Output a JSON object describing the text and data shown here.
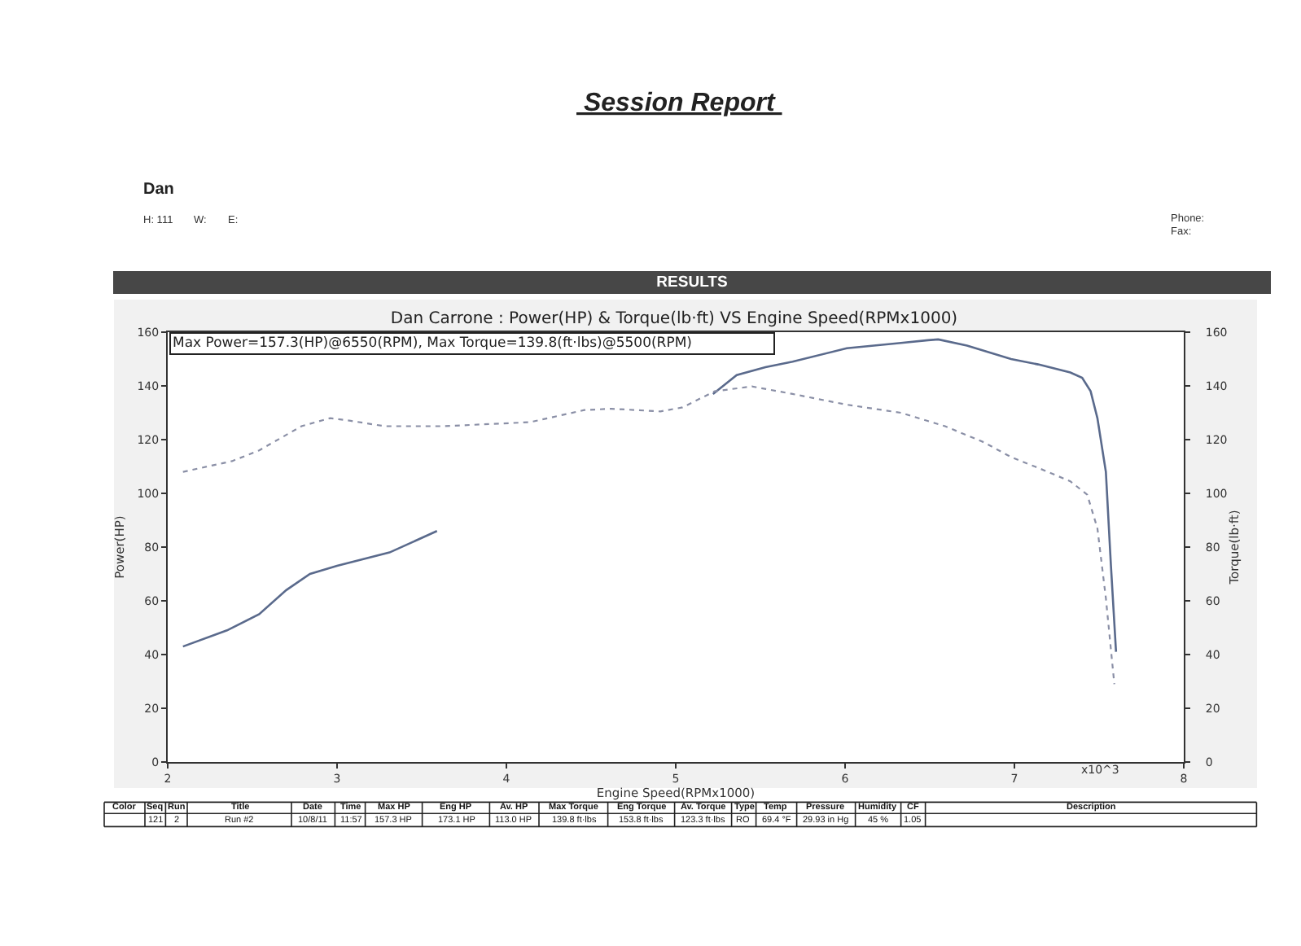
{
  "chart_data": {
    "type": "line",
    "title": "Dan Carrone : Power(HP) & Torque(lb·ft) VS Engine Speed(RPMx1000)",
    "xlabel": "Engine Speed(RPMx1000)",
    "ylabel": "Power(HP)",
    "y2label": "Torque(lb·ft)",
    "xlim": [
      2,
      8
    ],
    "xticks": [
      2,
      3,
      4,
      5,
      6,
      7,
      8
    ],
    "ylim": [
      0,
      160
    ],
    "yticks": [
      0,
      20,
      40,
      60,
      80,
      100,
      120,
      140,
      160
    ],
    "y2lim": [
      0,
      160
    ],
    "y2ticks": [
      0,
      20,
      40,
      60,
      80,
      100,
      120,
      140,
      160
    ],
    "series": [
      {
        "color": "#5a6a8c",
        "line_style": "solid",
        "x": [
          2.09,
          2.35,
          2.54,
          2.7,
          2.84,
          3.0,
          3.31,
          3.59,
          4.4,
          5.22,
          5.36,
          5.53,
          5.69,
          6.01,
          6.33,
          6.49,
          6.55,
          6.72,
          6.98,
          7.14,
          7.33,
          7.4,
          7.45,
          7.49,
          7.54,
          7.57,
          7.6
        ],
        "values": [
          43,
          49,
          55,
          64,
          70,
          73,
          78,
          86,
          null,
          137,
          144,
          147,
          149,
          154,
          156,
          157,
          157.3,
          155,
          150,
          148,
          145,
          143,
          138,
          128,
          108,
          73,
          41
        ]
      },
      {
        "color": "#8a8fa6",
        "line_style": "dotted",
        "axis": "y2",
        "x": [
          2.09,
          2.38,
          2.54,
          2.79,
          2.96,
          3.08,
          3.28,
          3.63,
          4.14,
          4.46,
          4.62,
          4.91,
          5.04,
          5.23,
          5.45,
          5.69,
          6.01,
          6.33,
          6.59,
          6.82,
          6.98,
          7.14,
          7.33,
          7.43,
          7.49,
          7.54,
          7.59
        ],
        "values": [
          108,
          112,
          116,
          125,
          128,
          127,
          125,
          125,
          126.5,
          131,
          131.5,
          130.5,
          132,
          138,
          139.8,
          137,
          133,
          130,
          125,
          119,
          113.5,
          109.5,
          104.5,
          99.5,
          87,
          61,
          29
        ]
      }
    ],
    "annotations": [
      "Session Report",
      "Dan",
      "H: 111",
      "W:",
      "E:",
      "Phone:",
      "Fax:",
      "RESULTS",
      "Max Power=157.3(HP)@6550(RPM), Max Torque=139.8(ft·lbs)@5500(RPM)",
      "x10^3",
      "Color",
      "Seq",
      "Run",
      "Title",
      "Date",
      "Time",
      "Max HP",
      "Eng HP",
      "Av. HP",
      "Max Torque",
      "Eng Torque",
      "Av. Torque",
      "Type",
      "Temp",
      "Pressure",
      "Humidity",
      "CF",
      "Description",
      "121",
      "2",
      "Run #2",
      "10/8/11",
      "11:57",
      "157.3 HP",
      "173.1 HP",
      "113.0 HP",
      "139.8 ft·lbs",
      "153.8 ft·lbs",
      "123.3 ft·lbs",
      "RO",
      "69.4 °F",
      "29.93 in Hg",
      "45 %",
      "1.05"
    ]
  }
}
